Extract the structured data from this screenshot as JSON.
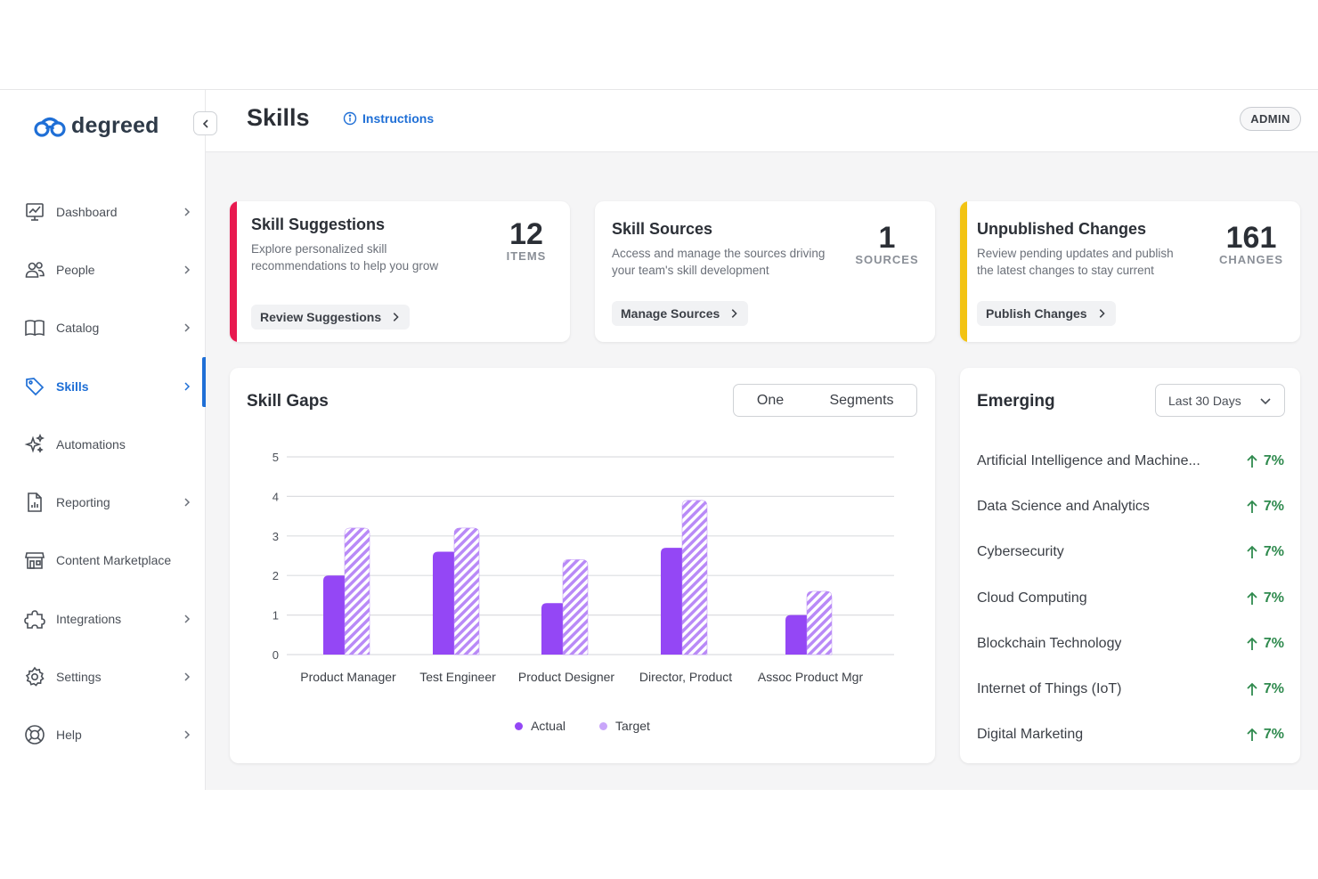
{
  "brand": {
    "name": "degreed",
    "color": "#1f6fd6"
  },
  "header": {
    "title": "Skills",
    "instructions_label": "Instructions",
    "admin_label": "ADMIN"
  },
  "sidebar": {
    "items": [
      {
        "label": "Dashboard",
        "icon": "dashboard-icon",
        "chevron": true,
        "active": false
      },
      {
        "label": "People",
        "icon": "people-icon",
        "chevron": true,
        "active": false
      },
      {
        "label": "Catalog",
        "icon": "catalog-icon",
        "chevron": true,
        "active": false
      },
      {
        "label": "Skills",
        "icon": "tag-icon",
        "chevron": true,
        "active": true
      },
      {
        "label": "Automations",
        "icon": "sparkle-icon",
        "chevron": false,
        "active": false
      },
      {
        "label": "Reporting",
        "icon": "report-icon",
        "chevron": true,
        "active": false
      },
      {
        "label": "Content Marketplace",
        "icon": "store-icon",
        "chevron": false,
        "active": false
      },
      {
        "label": "Integrations",
        "icon": "puzzle-icon",
        "chevron": true,
        "active": false
      },
      {
        "label": "Settings",
        "icon": "gear-icon",
        "chevron": true,
        "active": false
      },
      {
        "label": "Help",
        "icon": "help-icon",
        "chevron": true,
        "active": false
      }
    ]
  },
  "cards": {
    "suggestions": {
      "title": "Skill Suggestions",
      "desc_line1": "Explore personalized skill",
      "desc_line2": "recommendations to help you grow",
      "count": "12",
      "unit": "ITEMS",
      "button": "Review Suggestions",
      "accent": "#e8194f"
    },
    "sources": {
      "title": "Skill Sources",
      "desc_line1": "Access and manage the sources driving",
      "desc_line2": "your team's skill development",
      "count": "1",
      "unit": "SOURCES",
      "button": "Manage Sources"
    },
    "unpublished": {
      "title": "Unpublished Changes",
      "desc_line1": "Review pending updates and publish",
      "desc_line2": "the latest changes to stay current",
      "count": "161",
      "unit": "CHANGES",
      "button": "Publish Changes",
      "accent": "#f2c313"
    }
  },
  "skill_gaps": {
    "title": "Skill Gaps",
    "toggle": {
      "option1": "One",
      "option2": "Segments"
    },
    "legend": {
      "actual": "Actual",
      "target": "Target"
    },
    "colors": {
      "actual": "#9447f5",
      "target": "#b98af7"
    }
  },
  "chart_data": {
    "type": "bar",
    "categories": [
      "Product Manager",
      "Test Engineer",
      "Product Designer",
      "Director, Product",
      "Assoc Product Mgr"
    ],
    "series": [
      {
        "name": "Actual",
        "values": [
          2.0,
          2.6,
          1.3,
          2.7,
          1.0
        ]
      },
      {
        "name": "Target",
        "values": [
          3.2,
          3.2,
          2.4,
          3.9,
          1.6
        ]
      }
    ],
    "yticks": [
      "0",
      "1",
      "2",
      "3",
      "4",
      "5"
    ],
    "ylim": [
      0,
      5
    ],
    "grid": true,
    "legend_position": "bottom"
  },
  "emerging": {
    "title": "Emerging",
    "range": "Last 30 Days",
    "items": [
      {
        "name": "Artificial Intelligence and Machine...",
        "change": "7%"
      },
      {
        "name": "Data Science and Analytics",
        "change": "7%"
      },
      {
        "name": "Cybersecurity",
        "change": "7%"
      },
      {
        "name": "Cloud Computing",
        "change": "7%"
      },
      {
        "name": "Blockchain Technology",
        "change": "7%"
      },
      {
        "name": "Internet of Things (IoT)",
        "change": "7%"
      },
      {
        "name": "Digital Marketing",
        "change": "7%"
      }
    ],
    "up_color": "#2f8a4e"
  }
}
